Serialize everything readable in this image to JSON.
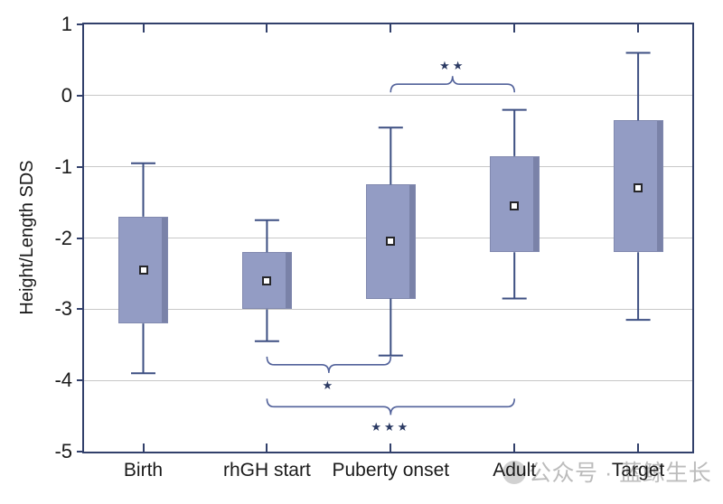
{
  "watermark": {
    "text": "公众号 · 蓝鲸生长"
  },
  "chart_data": {
    "type": "box",
    "title": "",
    "xlabel": "",
    "ylabel": "Height/Length SDS",
    "ylim": [
      -5,
      1
    ],
    "grid": "horizontal",
    "yticks": [
      {
        "value": 1,
        "label": "1"
      },
      {
        "value": 0,
        "label": "0"
      },
      {
        "value": -1,
        "label": "-1"
      },
      {
        "value": -2,
        "label": "-2"
      },
      {
        "value": -3,
        "label": "-3"
      },
      {
        "value": -4,
        "label": "-4"
      },
      {
        "value": -5,
        "label": "-5"
      }
    ],
    "categories": [
      "Birth",
      "rhGH start",
      "Puberty onset",
      "Adult",
      "Target"
    ],
    "boxes": [
      {
        "category": "Birth",
        "whisker_low": -3.9,
        "q1": -3.2,
        "mean": -2.45,
        "q3": -1.7,
        "whisker_high": -0.95
      },
      {
        "category": "rhGH start",
        "whisker_low": -3.45,
        "q1": -3.0,
        "mean": -2.6,
        "q3": -2.2,
        "whisker_high": -1.75
      },
      {
        "category": "Puberty onset",
        "whisker_low": -3.65,
        "q1": -2.85,
        "mean": -2.05,
        "q3": -1.25,
        "whisker_high": -0.45
      },
      {
        "category": "Adult",
        "whisker_low": -2.85,
        "q1": -2.2,
        "mean": -1.55,
        "q3": -0.85,
        "whisker_high": -0.2
      },
      {
        "category": "Target",
        "whisker_low": -3.15,
        "q1": -2.2,
        "mean": -1.3,
        "q3": -0.35,
        "whisker_high": 0.6
      }
    ],
    "significance": [
      {
        "label": "**",
        "from": "Puberty onset",
        "to": "Adult",
        "side": "top",
        "y": 0.16
      },
      {
        "label": "*",
        "from": "rhGH start",
        "to": "Puberty onset",
        "side": "bottom",
        "y": -3.78
      },
      {
        "label": "***",
        "from": "rhGH start",
        "to": "Adult",
        "side": "bottom",
        "y": -4.37
      }
    ],
    "colors": {
      "box_fill": "#939CC4",
      "box_shade": "#7A82A8",
      "whisker": "#3D4F82",
      "frame": "#32406B",
      "grid": "#C8C8C8",
      "bracket": "#51619A",
      "star": "#2B3A63",
      "text": "#1A1A1A"
    }
  }
}
